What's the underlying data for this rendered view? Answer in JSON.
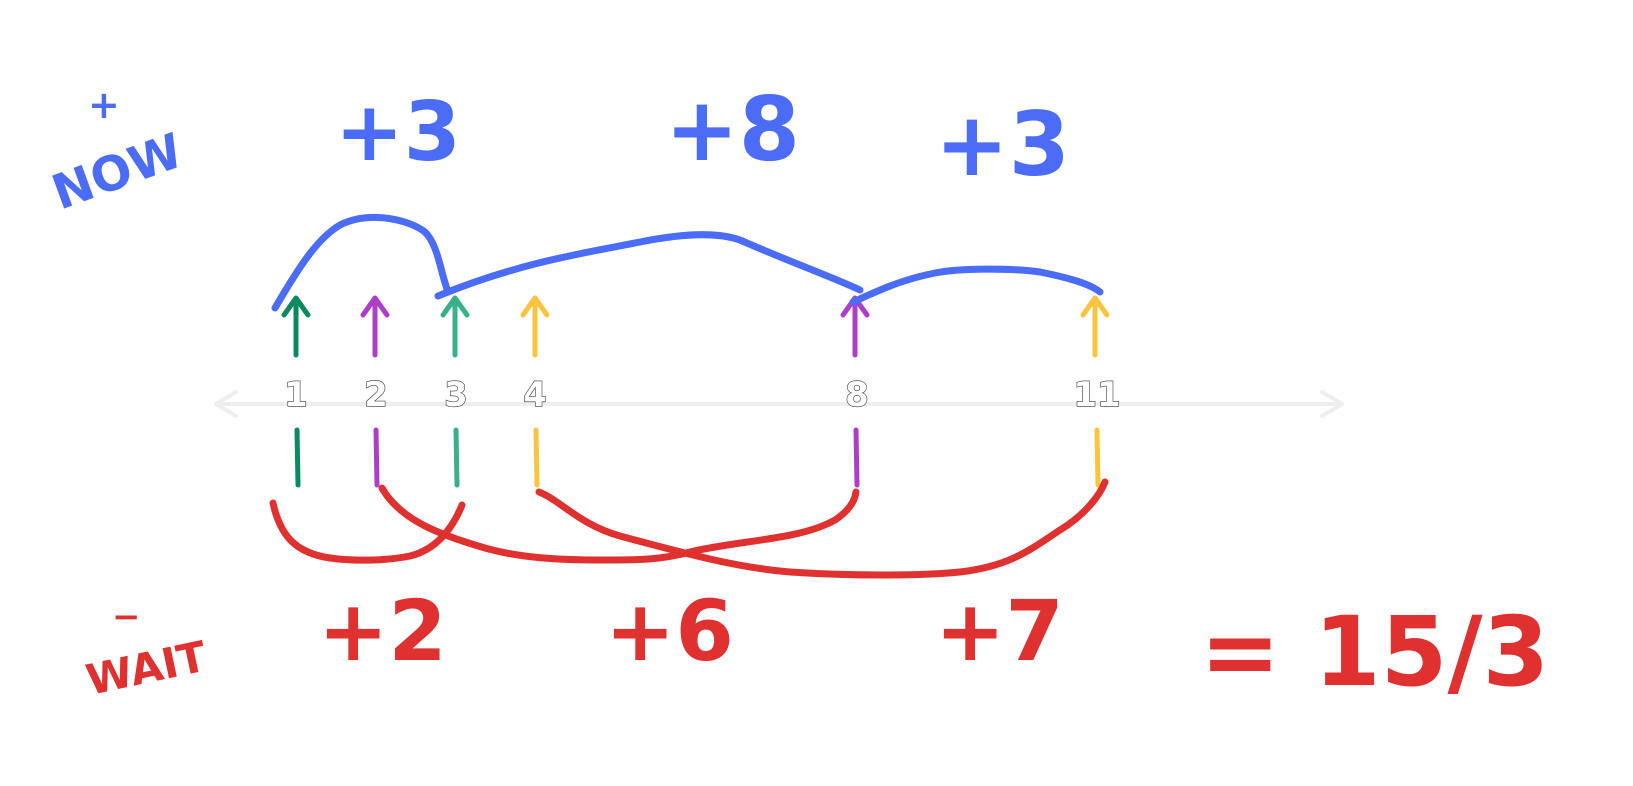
{
  "now": {
    "label": "NOW",
    "accent": "+",
    "terms": [
      "+3",
      "+8",
      "+3"
    ],
    "color": "#4a6cf7"
  },
  "wait": {
    "label": "WAIT",
    "accent": "−",
    "terms": [
      "+2",
      "+6",
      "+7"
    ],
    "color": "#e03131",
    "result": "= 15/3"
  },
  "timeline": {
    "ticks": [
      "1",
      "2",
      "3",
      "4",
      "8",
      "11"
    ],
    "axis_color": "#eeeeee"
  },
  "arrows": [
    {
      "tick": "1",
      "color": "#0b8a5f"
    },
    {
      "tick": "2",
      "color": "#ae3ec9"
    },
    {
      "tick": "3",
      "color": "#38b08a"
    },
    {
      "tick": "4",
      "color": "#fcc43d"
    },
    {
      "tick": "8",
      "color": "#ae3ec9"
    },
    {
      "tick": "11",
      "color": "#fcc43d"
    }
  ]
}
